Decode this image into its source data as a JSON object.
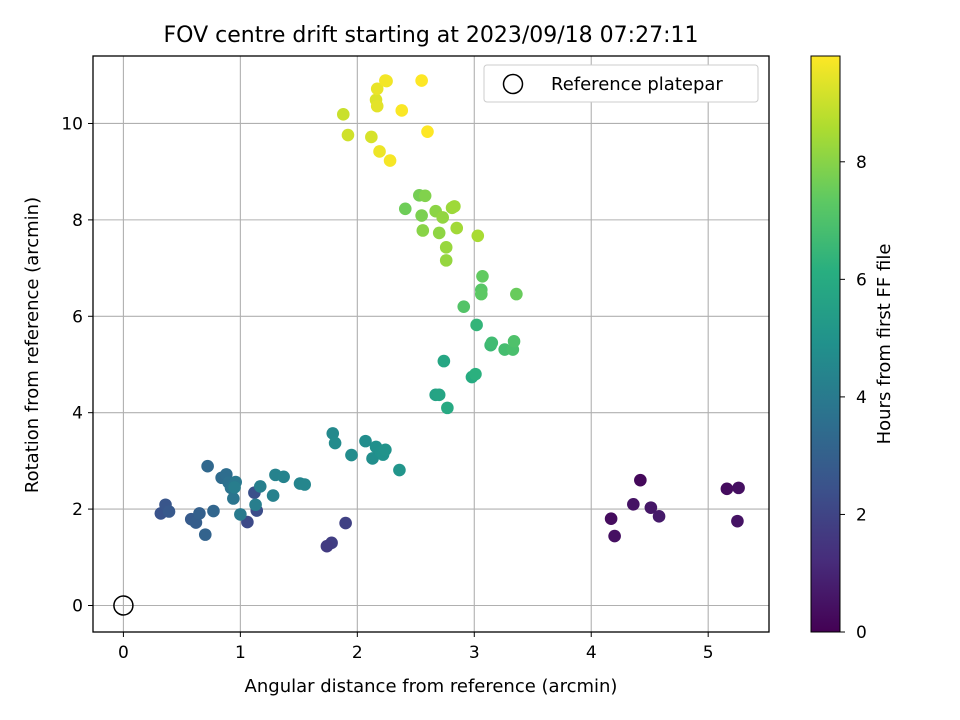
{
  "chart_data": {
    "type": "scatter",
    "title": "FOV centre drift starting at 2023/09/18 07:27:11",
    "xlabel": "Angular distance from reference (arcmin)",
    "ylabel": "Rotation from reference (arcmin)",
    "xlim": [
      -0.26,
      5.52
    ],
    "ylim": [
      -0.55,
      11.4
    ],
    "xticks": [
      0,
      1,
      2,
      3,
      4,
      5
    ],
    "yticks": [
      0,
      2,
      4,
      6,
      8,
      10
    ],
    "grid": true,
    "legend": {
      "position": "top-right",
      "entries": [
        "Reference platepar"
      ]
    },
    "reference_point": {
      "x": 0,
      "y": 0,
      "marker": "open-circle",
      "color": "#000000"
    },
    "colorbar": {
      "label": "Hours from first FF file",
      "colormap": "viridis",
      "range": [
        0,
        9.8
      ],
      "ticks": [
        0,
        2,
        4,
        6,
        8
      ]
    },
    "x": [
      4.42,
      4.17,
      4.2,
      4.36,
      4.51,
      4.58,
      5.16,
      5.26,
      5.25,
      1.9,
      1.78,
      1.74,
      1.06,
      1.14,
      1.12,
      0.32,
      0.36,
      0.39,
      0.58,
      0.62,
      0.65,
      0.7,
      0.77,
      0.72,
      0.84,
      0.88,
      0.9,
      0.92,
      0.94,
      0.96,
      1.0,
      0.95,
      1.13,
      1.17,
      1.28,
      1.3,
      1.37,
      1.51,
      1.55,
      1.79,
      1.81,
      1.95,
      2.07,
      2.13,
      2.16,
      2.2,
      2.22,
      2.24,
      2.36,
      2.67,
      2.7,
      2.74,
      2.77,
      2.98,
      3.01,
      3.02,
      3.14,
      3.15,
      3.26,
      3.33,
      3.34,
      2.91,
      3.06,
      3.06,
      3.07,
      3.36,
      2.41,
      2.53,
      2.55,
      2.58,
      2.56,
      2.67,
      2.7,
      2.73,
      2.76,
      2.76,
      2.81,
      2.83,
      2.85,
      3.03,
      1.88,
      1.92,
      2.12,
      2.16,
      2.17,
      2.17,
      2.19,
      2.25,
      2.24,
      2.28,
      2.38,
      2.55,
      2.6
    ],
    "y": [
      2.6,
      1.8,
      1.44,
      2.1,
      2.03,
      1.85,
      2.42,
      2.44,
      1.75,
      1.71,
      1.3,
      1.23,
      1.73,
      1.97,
      2.34,
      1.91,
      2.09,
      1.95,
      1.79,
      1.72,
      1.91,
      1.47,
      1.96,
      2.89,
      2.65,
      2.72,
      2.55,
      2.44,
      2.22,
      2.56,
      1.89,
      2.45,
      2.09,
      2.47,
      2.28,
      2.71,
      2.67,
      2.53,
      2.51,
      3.57,
      3.37,
      3.12,
      3.41,
      3.05,
      3.29,
      3.18,
      3.13,
      3.23,
      2.81,
      4.37,
      4.37,
      5.07,
      4.1,
      4.74,
      4.8,
      5.82,
      5.4,
      5.45,
      5.31,
      5.31,
      5.48,
      6.2,
      6.55,
      6.46,
      6.83,
      6.46,
      8.23,
      8.51,
      8.09,
      8.5,
      7.78,
      8.18,
      7.73,
      8.05,
      7.16,
      7.43,
      8.25,
      8.28,
      7.83,
      7.67,
      10.19,
      9.76,
      9.72,
      10.49,
      10.36,
      10.72,
      9.42,
      10.88,
      10.89,
      9.23,
      10.27,
      10.89,
      9.83
    ],
    "hours": [
      0.2,
      0.3,
      0.4,
      0.5,
      0.6,
      0.7,
      0.3,
      0.4,
      0.5,
      1.9,
      1.8,
      1.7,
      2.2,
      2.3,
      2.4,
      2.5,
      2.6,
      2.7,
      2.8,
      2.9,
      3.0,
      3.1,
      3.2,
      3.3,
      3.4,
      3.5,
      3.6,
      3.7,
      3.8,
      3.9,
      4.0,
      4.1,
      4.15,
      4.2,
      4.25,
      4.3,
      4.35,
      4.4,
      4.45,
      4.6,
      4.65,
      4.7,
      4.75,
      4.8,
      4.85,
      4.9,
      4.95,
      5.0,
      5.05,
      5.6,
      5.7,
      5.8,
      5.9,
      6.0,
      6.2,
      6.4,
      6.6,
      6.7,
      6.8,
      6.9,
      7.0,
      7.1,
      7.2,
      7.3,
      7.4,
      7.5,
      7.6,
      7.7,
      7.8,
      7.9,
      8.0,
      8.05,
      8.1,
      8.15,
      8.2,
      8.25,
      8.3,
      8.35,
      8.4,
      8.5,
      9.0,
      9.1,
      9.2,
      9.3,
      9.4,
      9.5,
      9.55,
      9.6,
      9.65,
      9.7,
      9.75,
      9.8,
      9.85
    ]
  }
}
